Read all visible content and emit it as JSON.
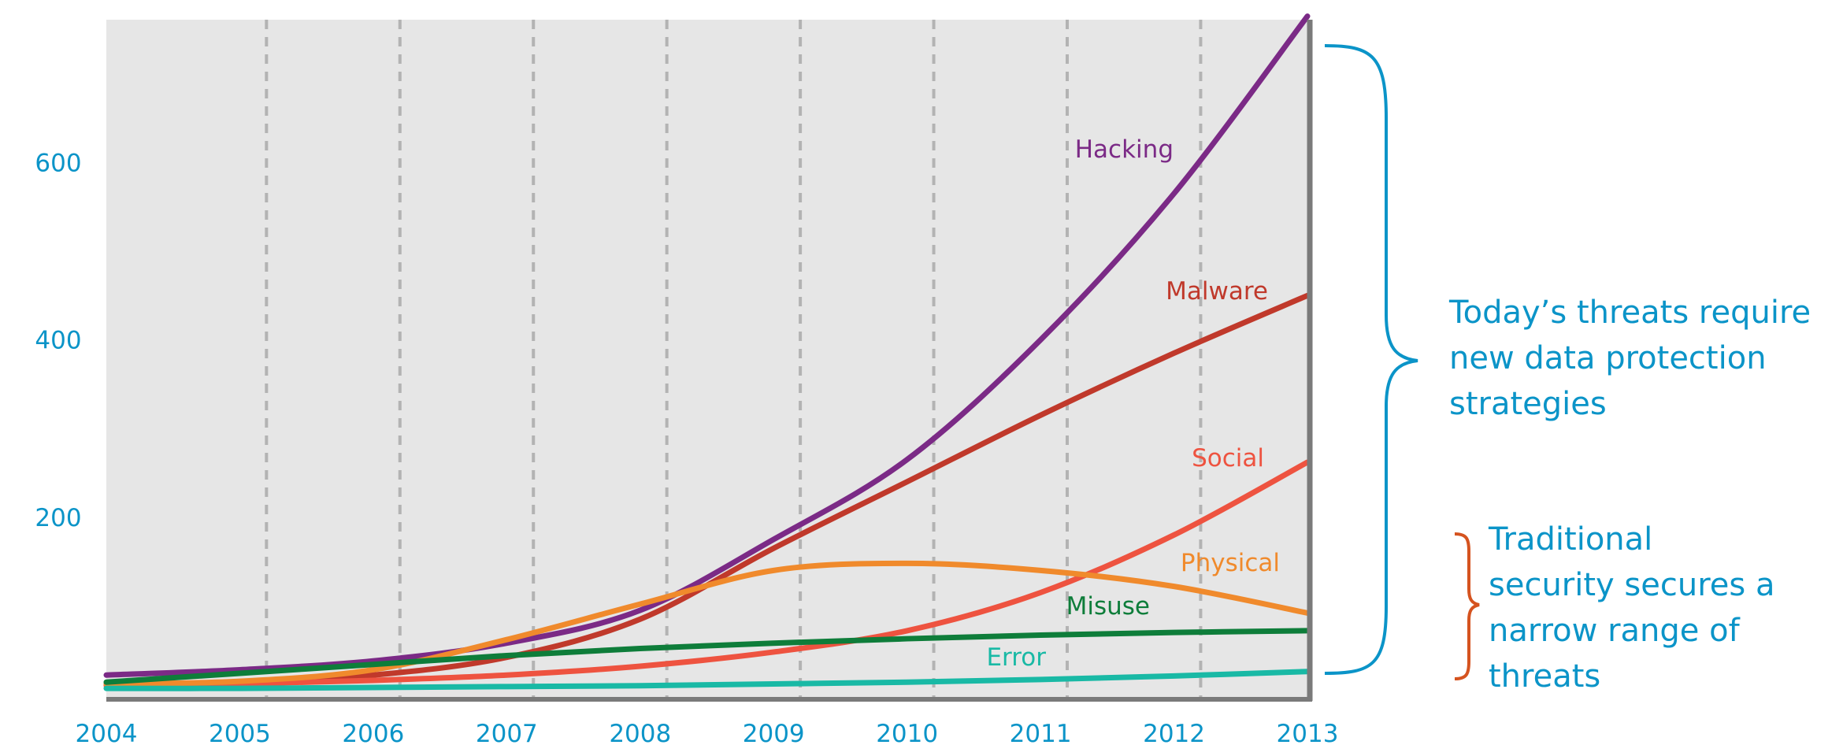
{
  "chart_data": {
    "type": "line",
    "title": "",
    "xlabel": "",
    "ylabel": "",
    "x": [
      2004,
      2005,
      2006,
      2007,
      2008,
      2009,
      2010,
      2011,
      2012,
      2013
    ],
    "x_tick_labels": [
      "2004",
      "2005",
      "2006",
      "2007",
      "2008",
      "2009",
      "2010",
      "2011",
      "2012",
      "2013"
    ],
    "y_tick_labels": [
      "200",
      "400",
      "600"
    ],
    "xlim": [
      2004,
      2013
    ],
    "ylim": [
      0,
      780
    ],
    "grid": "vertical dashed",
    "series": [
      {
        "name": "Hacking",
        "color": "#7b2a86",
        "values": [
          22,
          28,
          38,
          58,
          95,
          175,
          265,
          400,
          565,
          765
        ]
      },
      {
        "name": "Malware",
        "color": "#c0392b",
        "values": [
          12,
          14,
          22,
          42,
          85,
          165,
          240,
          315,
          385,
          450
        ]
      },
      {
        "name": "Social",
        "color": "#ee5340",
        "values": [
          10,
          12,
          16,
          22,
          32,
          48,
          72,
          115,
          180,
          262
        ]
      },
      {
        "name": "Physical",
        "color": "#f08a2c",
        "values": [
          12,
          15,
          28,
          62,
          102,
          140,
          148,
          140,
          122,
          92
        ]
      },
      {
        "name": "Misuse",
        "color": "#0e7d3a",
        "values": [
          14,
          24,
          34,
          44,
          52,
          58,
          63,
          67,
          70,
          72
        ]
      },
      {
        "name": "Error",
        "color": "#19b9a5",
        "values": [
          7,
          7,
          8,
          9,
          10,
          12,
          14,
          17,
          21,
          26
        ]
      }
    ]
  },
  "annotations": {
    "top": [
      "Today’s threats require",
      "new data protection",
      "strategies"
    ],
    "bottom": [
      "Traditional",
      "security secures a",
      "narrow range of",
      "threats"
    ],
    "top_color": "#0b94c8",
    "bottom_color": "#d5531f"
  }
}
